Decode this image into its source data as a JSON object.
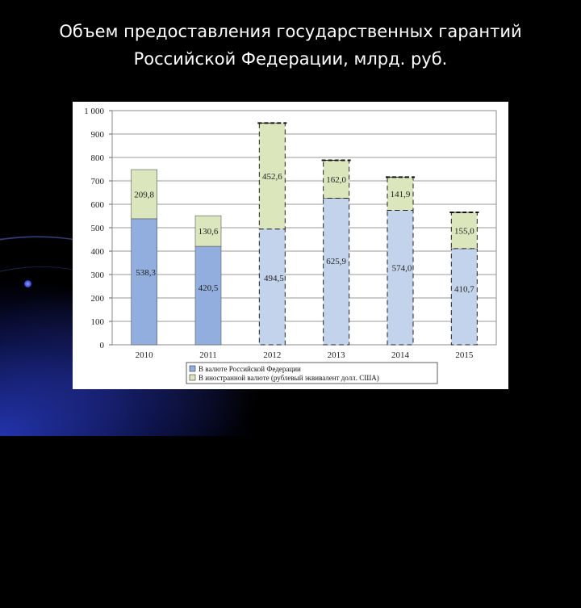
{
  "slide": {
    "title_line1": "Объем предоставления государственных гарантий",
    "title_line2": "Российской Федерации, млрд. руб."
  },
  "colors": {
    "domestic_solid": "#92aede",
    "domestic_dashed": "#c3d3ec",
    "foreign": "#dbe6bd",
    "background": "#000000",
    "accent_glow": "#2a3ad0"
  },
  "chart_data": {
    "type": "bar",
    "stacked": true,
    "categories": [
      "2010",
      "2011",
      "2012",
      "2013",
      "2014",
      "2015"
    ],
    "y_ticks": [
      "0",
      "100",
      "200",
      "300",
      "400",
      "500",
      "600",
      "700",
      "800",
      "900",
      "1 000"
    ],
    "ylim": [
      0,
      1000
    ],
    "grid": true,
    "legend_position": "bottom",
    "dashed_categories": [
      "2012",
      "2013",
      "2014",
      "2015"
    ],
    "series": [
      {
        "name": "В валюте Российской Федерации",
        "values": [
          538.3,
          420.5,
          494.5,
          625.9,
          574.0,
          410.7
        ],
        "labels": [
          "538,3",
          "420,5",
          "494,5",
          "625,9",
          "574,0",
          "410,7"
        ]
      },
      {
        "name": "В иностранной валюте (рублевый эквивалент долл. США)",
        "values": [
          209.8,
          130.6,
          452.6,
          162.0,
          141.9,
          155.0
        ],
        "labels": [
          "209,8",
          "130,6",
          "452,6",
          "162,0",
          "141,9",
          "155,0"
        ]
      }
    ]
  }
}
